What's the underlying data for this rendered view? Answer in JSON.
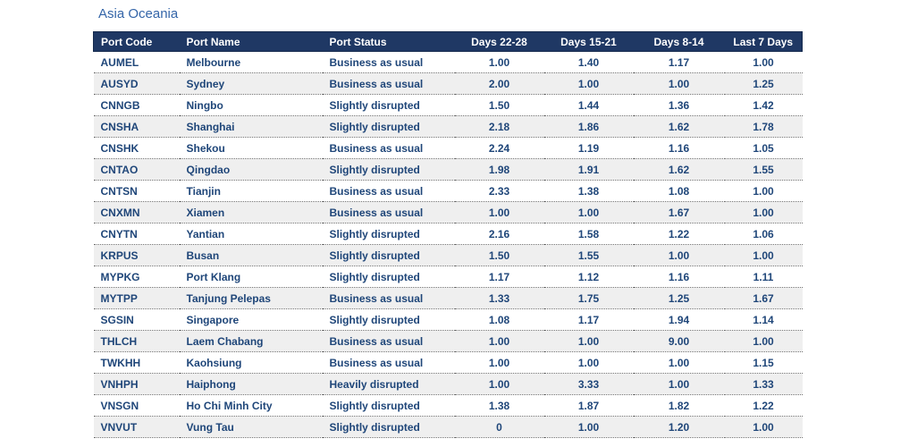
{
  "title": "Asia Oceania",
  "table": {
    "columns": [
      "Port Code",
      "Port Name",
      "Port Status",
      "Days 22-28",
      "Days 15-21",
      "Days 8-14",
      "Last 7 Days"
    ],
    "column_keys": [
      "port_code",
      "port_name",
      "port_status",
      "days_22_28",
      "days_15_21",
      "days_8_14",
      "last_7_days"
    ],
    "rows": [
      {
        "port_code": "AUMEL",
        "port_name": "Melbourne",
        "port_status": "Business as usual",
        "days_22_28": "1.00",
        "days_15_21": "1.40",
        "days_8_14": "1.17",
        "last_7_days": "1.00"
      },
      {
        "port_code": "AUSYD",
        "port_name": "Sydney",
        "port_status": "Business as usual",
        "days_22_28": "2.00",
        "days_15_21": "1.00",
        "days_8_14": "1.00",
        "last_7_days": "1.25"
      },
      {
        "port_code": "CNNGB",
        "port_name": "Ningbo",
        "port_status": "Slightly disrupted",
        "days_22_28": "1.50",
        "days_15_21": "1.44",
        "days_8_14": "1.36",
        "last_7_days": "1.42"
      },
      {
        "port_code": "CNSHA",
        "port_name": "Shanghai",
        "port_status": "Slightly disrupted",
        "days_22_28": "2.18",
        "days_15_21": "1.86",
        "days_8_14": "1.62",
        "last_7_days": "1.78"
      },
      {
        "port_code": "CNSHK",
        "port_name": "Shekou",
        "port_status": "Business as usual",
        "days_22_28": "2.24",
        "days_15_21": "1.19",
        "days_8_14": "1.16",
        "last_7_days": "1.05"
      },
      {
        "port_code": "CNTAO",
        "port_name": "Qingdao",
        "port_status": "Slightly disrupted",
        "days_22_28": "1.98",
        "days_15_21": "1.91",
        "days_8_14": "1.62",
        "last_7_days": "1.55"
      },
      {
        "port_code": "CNTSN",
        "port_name": "Tianjin",
        "port_status": "Business as usual",
        "days_22_28": "2.33",
        "days_15_21": "1.38",
        "days_8_14": "1.08",
        "last_7_days": "1.00"
      },
      {
        "port_code": "CNXMN",
        "port_name": "Xiamen",
        "port_status": "Business as usual",
        "days_22_28": "1.00",
        "days_15_21": "1.00",
        "days_8_14": "1.67",
        "last_7_days": "1.00"
      },
      {
        "port_code": "CNYTN",
        "port_name": "Yantian",
        "port_status": "Slightly disrupted",
        "days_22_28": "2.16",
        "days_15_21": "1.58",
        "days_8_14": "1.22",
        "last_7_days": "1.06"
      },
      {
        "port_code": "KRPUS",
        "port_name": "Busan",
        "port_status": "Slightly disrupted",
        "days_22_28": "1.50",
        "days_15_21": "1.55",
        "days_8_14": "1.00",
        "last_7_days": "1.00"
      },
      {
        "port_code": "MYPKG",
        "port_name": "Port Klang",
        "port_status": "Slightly disrupted",
        "days_22_28": "1.17",
        "days_15_21": "1.12",
        "days_8_14": "1.16",
        "last_7_days": "1.11"
      },
      {
        "port_code": "MYTPP",
        "port_name": "Tanjung Pelepas",
        "port_status": "Business as usual",
        "days_22_28": "1.33",
        "days_15_21": "1.75",
        "days_8_14": "1.25",
        "last_7_days": "1.67"
      },
      {
        "port_code": "SGSIN",
        "port_name": "Singapore",
        "port_status": "Slightly disrupted",
        "days_22_28": "1.08",
        "days_15_21": "1.17",
        "days_8_14": "1.94",
        "last_7_days": "1.14"
      },
      {
        "port_code": "THLCH",
        "port_name": "Laem Chabang",
        "port_status": "Business as usual",
        "days_22_28": "1.00",
        "days_15_21": "1.00",
        "days_8_14": "9.00",
        "last_7_days": "1.00"
      },
      {
        "port_code": "TWKHH",
        "port_name": "Kaohsiung",
        "port_status": "Business as usual",
        "days_22_28": "1.00",
        "days_15_21": "1.00",
        "days_8_14": "1.00",
        "last_7_days": "1.15"
      },
      {
        "port_code": "VNHPH",
        "port_name": "Haiphong",
        "port_status": "Heavily disrupted",
        "days_22_28": "1.00",
        "days_15_21": "3.33",
        "days_8_14": "1.00",
        "last_7_days": "1.33"
      },
      {
        "port_code": "VNSGN",
        "port_name": "Ho Chi Minh City",
        "port_status": "Slightly disrupted",
        "days_22_28": "1.38",
        "days_15_21": "1.87",
        "days_8_14": "1.82",
        "last_7_days": "1.22"
      },
      {
        "port_code": "VNVUT",
        "port_name": "Vung Tau",
        "port_status": "Slightly disrupted",
        "days_22_28": "0",
        "days_15_21": "1.00",
        "days_8_14": "1.20",
        "last_7_days": "1.00"
      }
    ],
    "colors": {
      "header_bg": "#1f3864",
      "header_text": "#ffffff",
      "body_text": "#1f4679",
      "alt_row_bg": "#efefef",
      "title_text": "#3465a8"
    }
  }
}
